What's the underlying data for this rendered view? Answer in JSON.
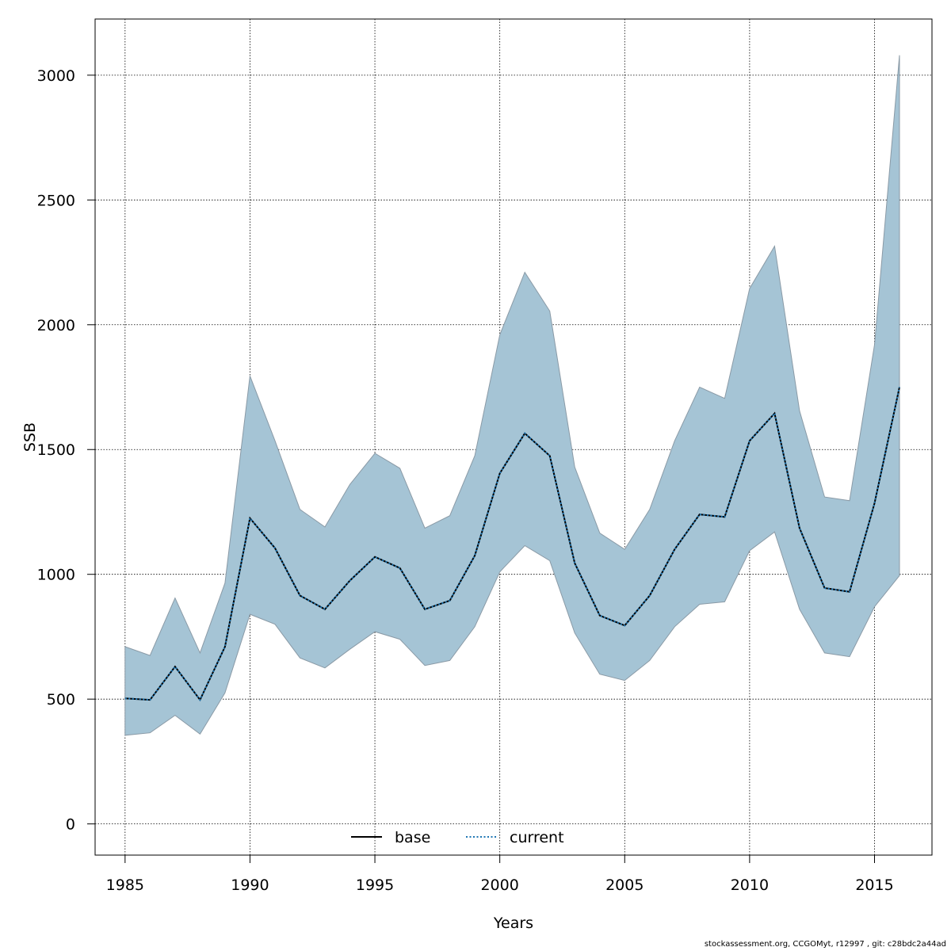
{
  "chart_data": {
    "type": "line",
    "title": "",
    "xlabel": "Years",
    "ylabel": "SSB",
    "xlim": [
      1983.8,
      2017.3
    ],
    "ylim": [
      -125,
      3225
    ],
    "x_ticks": [
      1985,
      1990,
      1995,
      2000,
      2005,
      2010,
      2015
    ],
    "y_ticks": [
      0,
      500,
      1000,
      1500,
      2000,
      2500,
      3000
    ],
    "grid": true,
    "legend_position": "bottom-center",
    "x": [
      1985,
      1986,
      1987,
      1988,
      1989,
      1990,
      1991,
      1992,
      1993,
      1994,
      1995,
      1996,
      1997,
      1998,
      1999,
      2000,
      2001,
      2002,
      2003,
      2004,
      2005,
      2006,
      2007,
      2008,
      2009,
      2010,
      2011,
      2012,
      2013,
      2014,
      2015,
      2016
    ],
    "series": [
      {
        "name": "base",
        "line_style": "solid",
        "color": "#000000",
        "values": [
          503,
          497,
          630,
          497,
          710,
          1225,
          1105,
          915,
          860,
          975,
          1070,
          1025,
          860,
          895,
          1075,
          1405,
          1565,
          1475,
          1045,
          835,
          795,
          915,
          1100,
          1240,
          1230,
          1535,
          1645,
          1185,
          945,
          930,
          1285,
          1750
        ]
      },
      {
        "name": "current",
        "line_style": "dotted",
        "color": "#1f77b4",
        "values": [
          503,
          497,
          630,
          497,
          710,
          1225,
          1105,
          915,
          860,
          975,
          1070,
          1025,
          860,
          895,
          1075,
          1405,
          1565,
          1475,
          1045,
          835,
          795,
          915,
          1100,
          1240,
          1230,
          1535,
          1645,
          1185,
          945,
          930,
          1285,
          1750
        ]
      }
    ],
    "interval": {
      "color": "#a5c4d5",
      "edge_color": "#8a9aa6",
      "upper": [
        710,
        675,
        905,
        685,
        965,
        1795,
        1535,
        1260,
        1190,
        1360,
        1485,
        1425,
        1185,
        1235,
        1475,
        1960,
        2210,
        2055,
        1430,
        1165,
        1100,
        1260,
        1535,
        1750,
        1705,
        2145,
        2315,
        1655,
        1310,
        1295,
        1920,
        3080
      ],
      "lower": [
        355,
        365,
        435,
        360,
        525,
        840,
        800,
        665,
        625,
        700,
        770,
        740,
        635,
        655,
        790,
        1010,
        1115,
        1055,
        765,
        600,
        575,
        655,
        790,
        880,
        890,
        1095,
        1170,
        860,
        685,
        670,
        870,
        995
      ]
    },
    "footer": "stockassessment.org, CCGOMyt, r12997 , git: c28bdc2a44ad"
  }
}
